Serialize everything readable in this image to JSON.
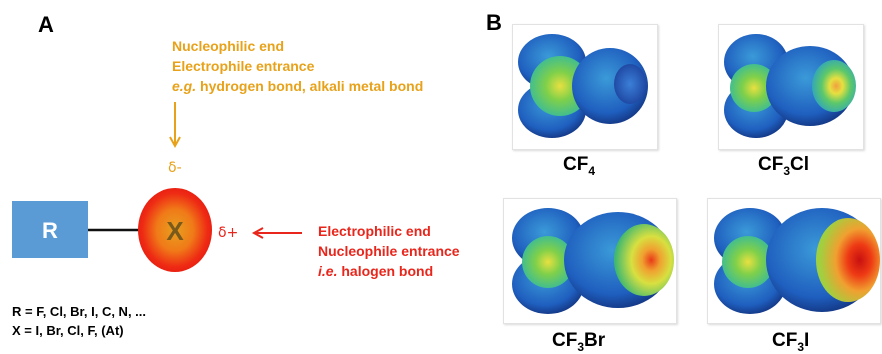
{
  "panel_a": {
    "label": "A",
    "r_box_label": "R",
    "x_atom_label": "X",
    "delta_minus": "δ-",
    "delta_plus": "δ+",
    "nucleophilic": {
      "line1": "Nucleophilic end",
      "line2": "Electrophile entrance",
      "line3_italic": "e.g.",
      "line3_rest": " hydrogen bond,  alkali metal bond"
    },
    "electrophilic": {
      "line1": "Electrophilic end",
      "line2": "Nucleophile entrance",
      "line3_italic": "i.e.",
      "line3_rest": " halogen bond"
    },
    "notes": {
      "r_values": "R = F, Cl, Br, I, C, N, ...",
      "x_values": "X = I, Br, Cl, F, (At)"
    },
    "colors": {
      "r_box": "#5b9bd5",
      "orange": "#e8a21a",
      "red": "#e8261c"
    }
  },
  "panel_b": {
    "label": "B",
    "molecules": [
      {
        "formula_main": "CF",
        "sub": "4",
        "tail": "",
        "sigma_hole": "weak"
      },
      {
        "formula_main": "CF",
        "sub": "3",
        "tail": "Cl",
        "sigma_hole": "small"
      },
      {
        "formula_main": "CF",
        "sub": "3",
        "tail": "Br",
        "sigma_hole": "medium"
      },
      {
        "formula_main": "CF",
        "sub": "3",
        "tail": "I",
        "sigma_hole": "strong"
      }
    ]
  }
}
